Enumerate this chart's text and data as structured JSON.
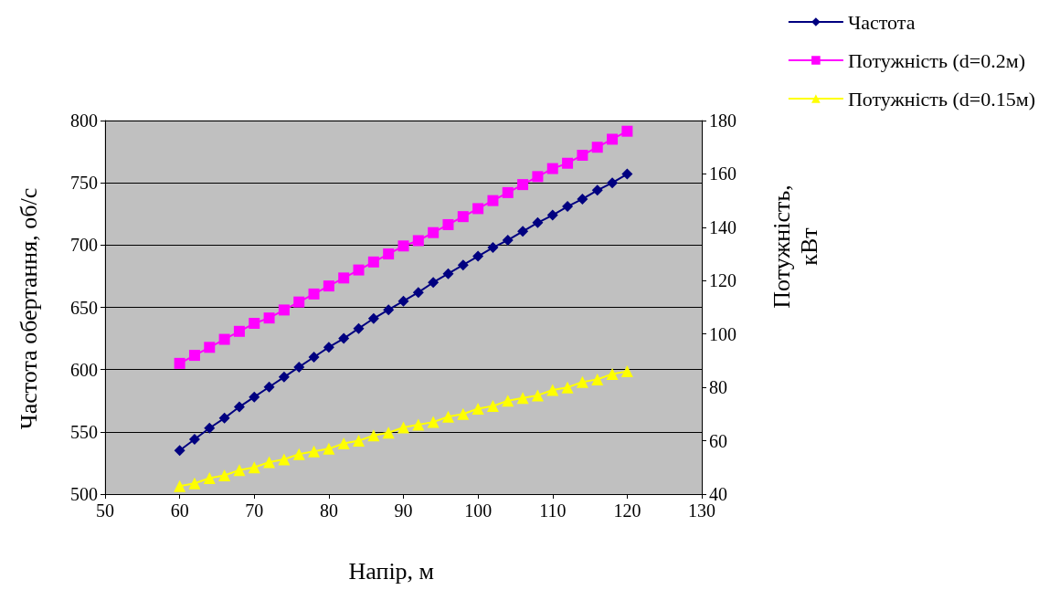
{
  "chart_data": {
    "type": "line",
    "xlabel": "Напір, м",
    "ylabel": "Частота обертання, об/с",
    "y2label": "Потужність, кВт",
    "x": [
      60,
      62,
      64,
      66,
      68,
      70,
      72,
      74,
      76,
      78,
      80,
      82,
      84,
      86,
      88,
      90,
      92,
      94,
      96,
      98,
      100,
      102,
      104,
      106,
      108,
      110,
      112,
      114,
      116,
      118,
      120
    ],
    "series": [
      {
        "name": "Частота",
        "color": "#000080",
        "marker": "diamond",
        "values": [
          535,
          544,
          553,
          561,
          570,
          578,
          586,
          594,
          602,
          610,
          618,
          625,
          633,
          641,
          648,
          655,
          662,
          670,
          677,
          684,
          691,
          698,
          704,
          711,
          718,
          724,
          731,
          737,
          744,
          750,
          757
        ]
      },
      {
        "name": "Потужність (d=0.2м)",
        "color": "#ff00ff",
        "marker": "square",
        "axis": "y2",
        "values": [
          89,
          92,
          95,
          98,
          101,
          104,
          106,
          109,
          112,
          115,
          118,
          121,
          124,
          127,
          130,
          133,
          135,
          138,
          141,
          144,
          147,
          150,
          153,
          156,
          159,
          162,
          164,
          167,
          170,
          173,
          176
        ]
      },
      {
        "name": "Потужність (d=0.15м)",
        "color": "#ffff00",
        "marker": "triangle",
        "axis": "y2",
        "values": [
          43,
          44,
          46,
          47,
          49,
          50,
          52,
          53,
          55,
          56,
          57,
          59,
          60,
          62,
          63,
          65,
          66,
          67,
          69,
          70,
          72,
          73,
          75,
          76,
          77,
          79,
          80,
          82,
          83,
          85,
          86
        ]
      }
    ],
    "xlim": [
      50,
      130
    ],
    "xticks": [
      50,
      60,
      70,
      80,
      90,
      100,
      110,
      120,
      130
    ],
    "ylim": [
      500,
      800
    ],
    "yticks": [
      500,
      550,
      600,
      650,
      700,
      750,
      800
    ],
    "y2lim": [
      40,
      180
    ],
    "y2ticks": [
      40,
      60,
      80,
      100,
      120,
      140,
      160,
      180
    ],
    "grid": "y",
    "legend": "top right"
  }
}
